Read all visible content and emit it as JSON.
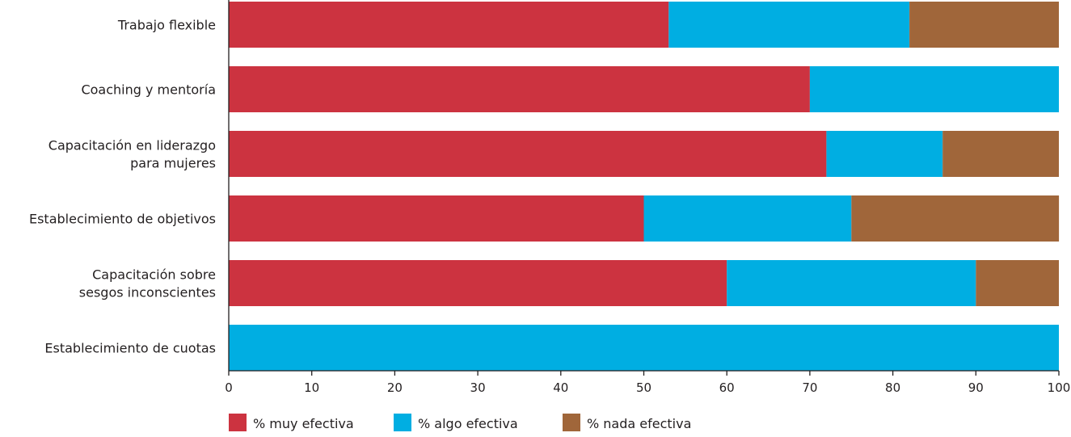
{
  "chart_data": {
    "type": "bar",
    "orientation": "horizontal",
    "stacked": true,
    "categories": [
      [
        "Trabajo flexible"
      ],
      [
        "Coaching y mentoría"
      ],
      [
        "Capacitación en liderazgo",
        "para mujeres"
      ],
      [
        "Establecimiento de objetivos"
      ],
      [
        "Capacitación sobre",
        "sesgos inconscientes"
      ],
      [
        "Establecimiento de cuotas"
      ]
    ],
    "series": [
      {
        "name": "% muy efectiva",
        "color": "#cc3340",
        "values": [
          53,
          70,
          72,
          50,
          60,
          0
        ]
      },
      {
        "name": "% algo efectiva",
        "color": "#00aee2",
        "values": [
          29,
          30,
          14,
          25,
          30,
          100
        ]
      },
      {
        "name": "% nada efectiva",
        "color": "#a0663a",
        "values": [
          18,
          0,
          14,
          25,
          10,
          0
        ]
      }
    ],
    "xlim": [
      0,
      100
    ],
    "xticks": [
      0,
      10,
      20,
      30,
      40,
      50,
      60,
      70,
      80,
      90,
      100
    ],
    "grid": false,
    "legend_position": "bottom-left"
  }
}
